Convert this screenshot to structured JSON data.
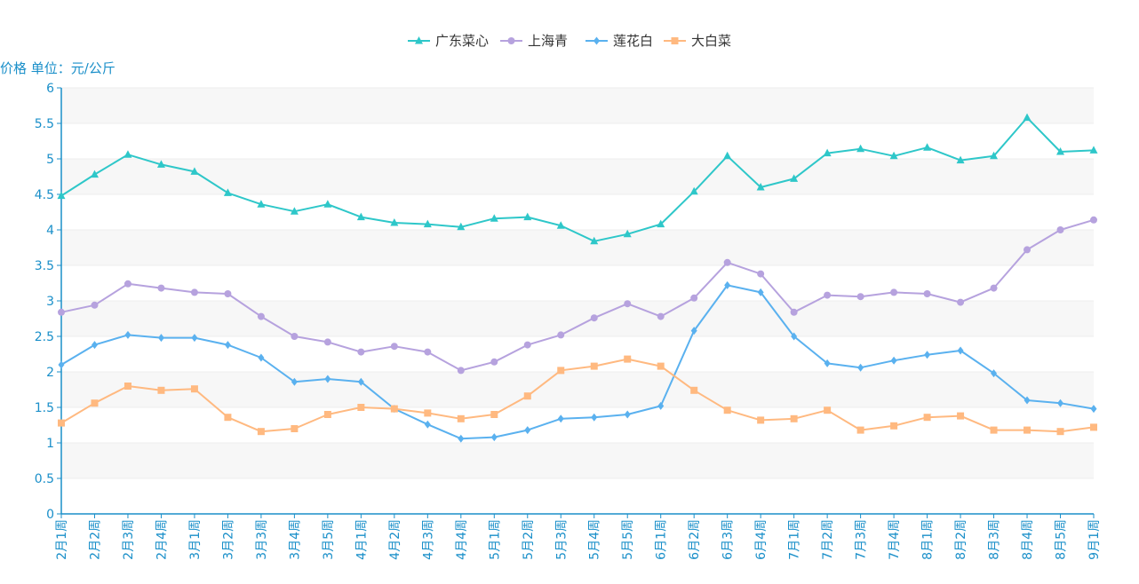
{
  "chart_data": {
    "type": "line",
    "title": "",
    "ylabel": "价格 单位：元/公斤",
    "xlabel": "",
    "ylim": [
      0,
      6
    ],
    "yticks": [
      "0",
      "0.5",
      "1",
      "1.5",
      "2",
      "2.5",
      "3",
      "3.5",
      "4",
      "4.5",
      "5",
      "5.5",
      "6"
    ],
    "grid": "horizontal bands",
    "legend_position": "top-center",
    "categories": [
      "2月1周",
      "2月2周",
      "2月3周",
      "2月4周",
      "3月1周",
      "3月2周",
      "3月3周",
      "3月4周",
      "3月5周",
      "4月1周",
      "4月2周",
      "4月3周",
      "4月4周",
      "5月1周",
      "5月2周",
      "5月3周",
      "5月4周",
      "5月5周",
      "6月1周",
      "6月2周",
      "6月3周",
      "6月4周",
      "7月1周",
      "7月2周",
      "7月3周",
      "7月4周",
      "8月1周",
      "8月2周",
      "8月3周",
      "8月4周",
      "8月5周",
      "9月1周"
    ],
    "series": [
      {
        "name": "广东菜心",
        "color": "#2ec7c9",
        "marker": "triangle",
        "values": [
          4.48,
          4.78,
          5.06,
          4.92,
          4.82,
          4.52,
          4.36,
          4.26,
          4.36,
          4.18,
          4.1,
          4.08,
          4.04,
          4.16,
          4.18,
          4.06,
          3.84,
          3.94,
          4.08,
          4.54,
          5.04,
          4.6,
          4.72,
          5.08,
          5.14,
          5.04,
          5.16,
          4.98,
          5.04,
          5.58,
          5.1,
          5.12
        ]
      },
      {
        "name": "上海青",
        "color": "#b6a2de",
        "marker": "circle",
        "values": [
          2.84,
          2.94,
          3.24,
          3.18,
          3.12,
          3.1,
          2.78,
          2.5,
          2.42,
          2.28,
          2.36,
          2.28,
          2.02,
          2.14,
          2.38,
          2.52,
          2.76,
          2.96,
          2.78,
          3.04,
          3.54,
          3.38,
          2.84,
          3.08,
          3.06,
          3.12,
          3.1,
          2.98,
          3.18,
          3.72,
          4.0,
          4.14
        ]
      },
      {
        "name": "莲花白",
        "color": "#5ab1ef",
        "marker": "diamond",
        "values": [
          2.1,
          2.38,
          2.52,
          2.48,
          2.48,
          2.38,
          2.2,
          1.86,
          1.9,
          1.86,
          1.48,
          1.26,
          1.06,
          1.08,
          1.18,
          1.34,
          1.36,
          1.4,
          1.52,
          2.58,
          3.22,
          3.12,
          2.5,
          2.12,
          2.06,
          2.16,
          2.24,
          2.3,
          1.98,
          1.6,
          1.56,
          1.48
        ]
      },
      {
        "name": "大白菜",
        "color": "#ffb980",
        "marker": "square",
        "values": [
          1.28,
          1.56,
          1.8,
          1.74,
          1.76,
          1.36,
          1.16,
          1.2,
          1.4,
          1.5,
          1.48,
          1.42,
          1.34,
          1.4,
          1.66,
          2.02,
          2.08,
          2.18,
          2.08,
          1.74,
          1.46,
          1.32,
          1.34,
          1.46,
          1.18,
          1.24,
          1.36,
          1.38,
          1.18,
          1.18,
          1.16,
          1.22
        ]
      }
    ]
  }
}
